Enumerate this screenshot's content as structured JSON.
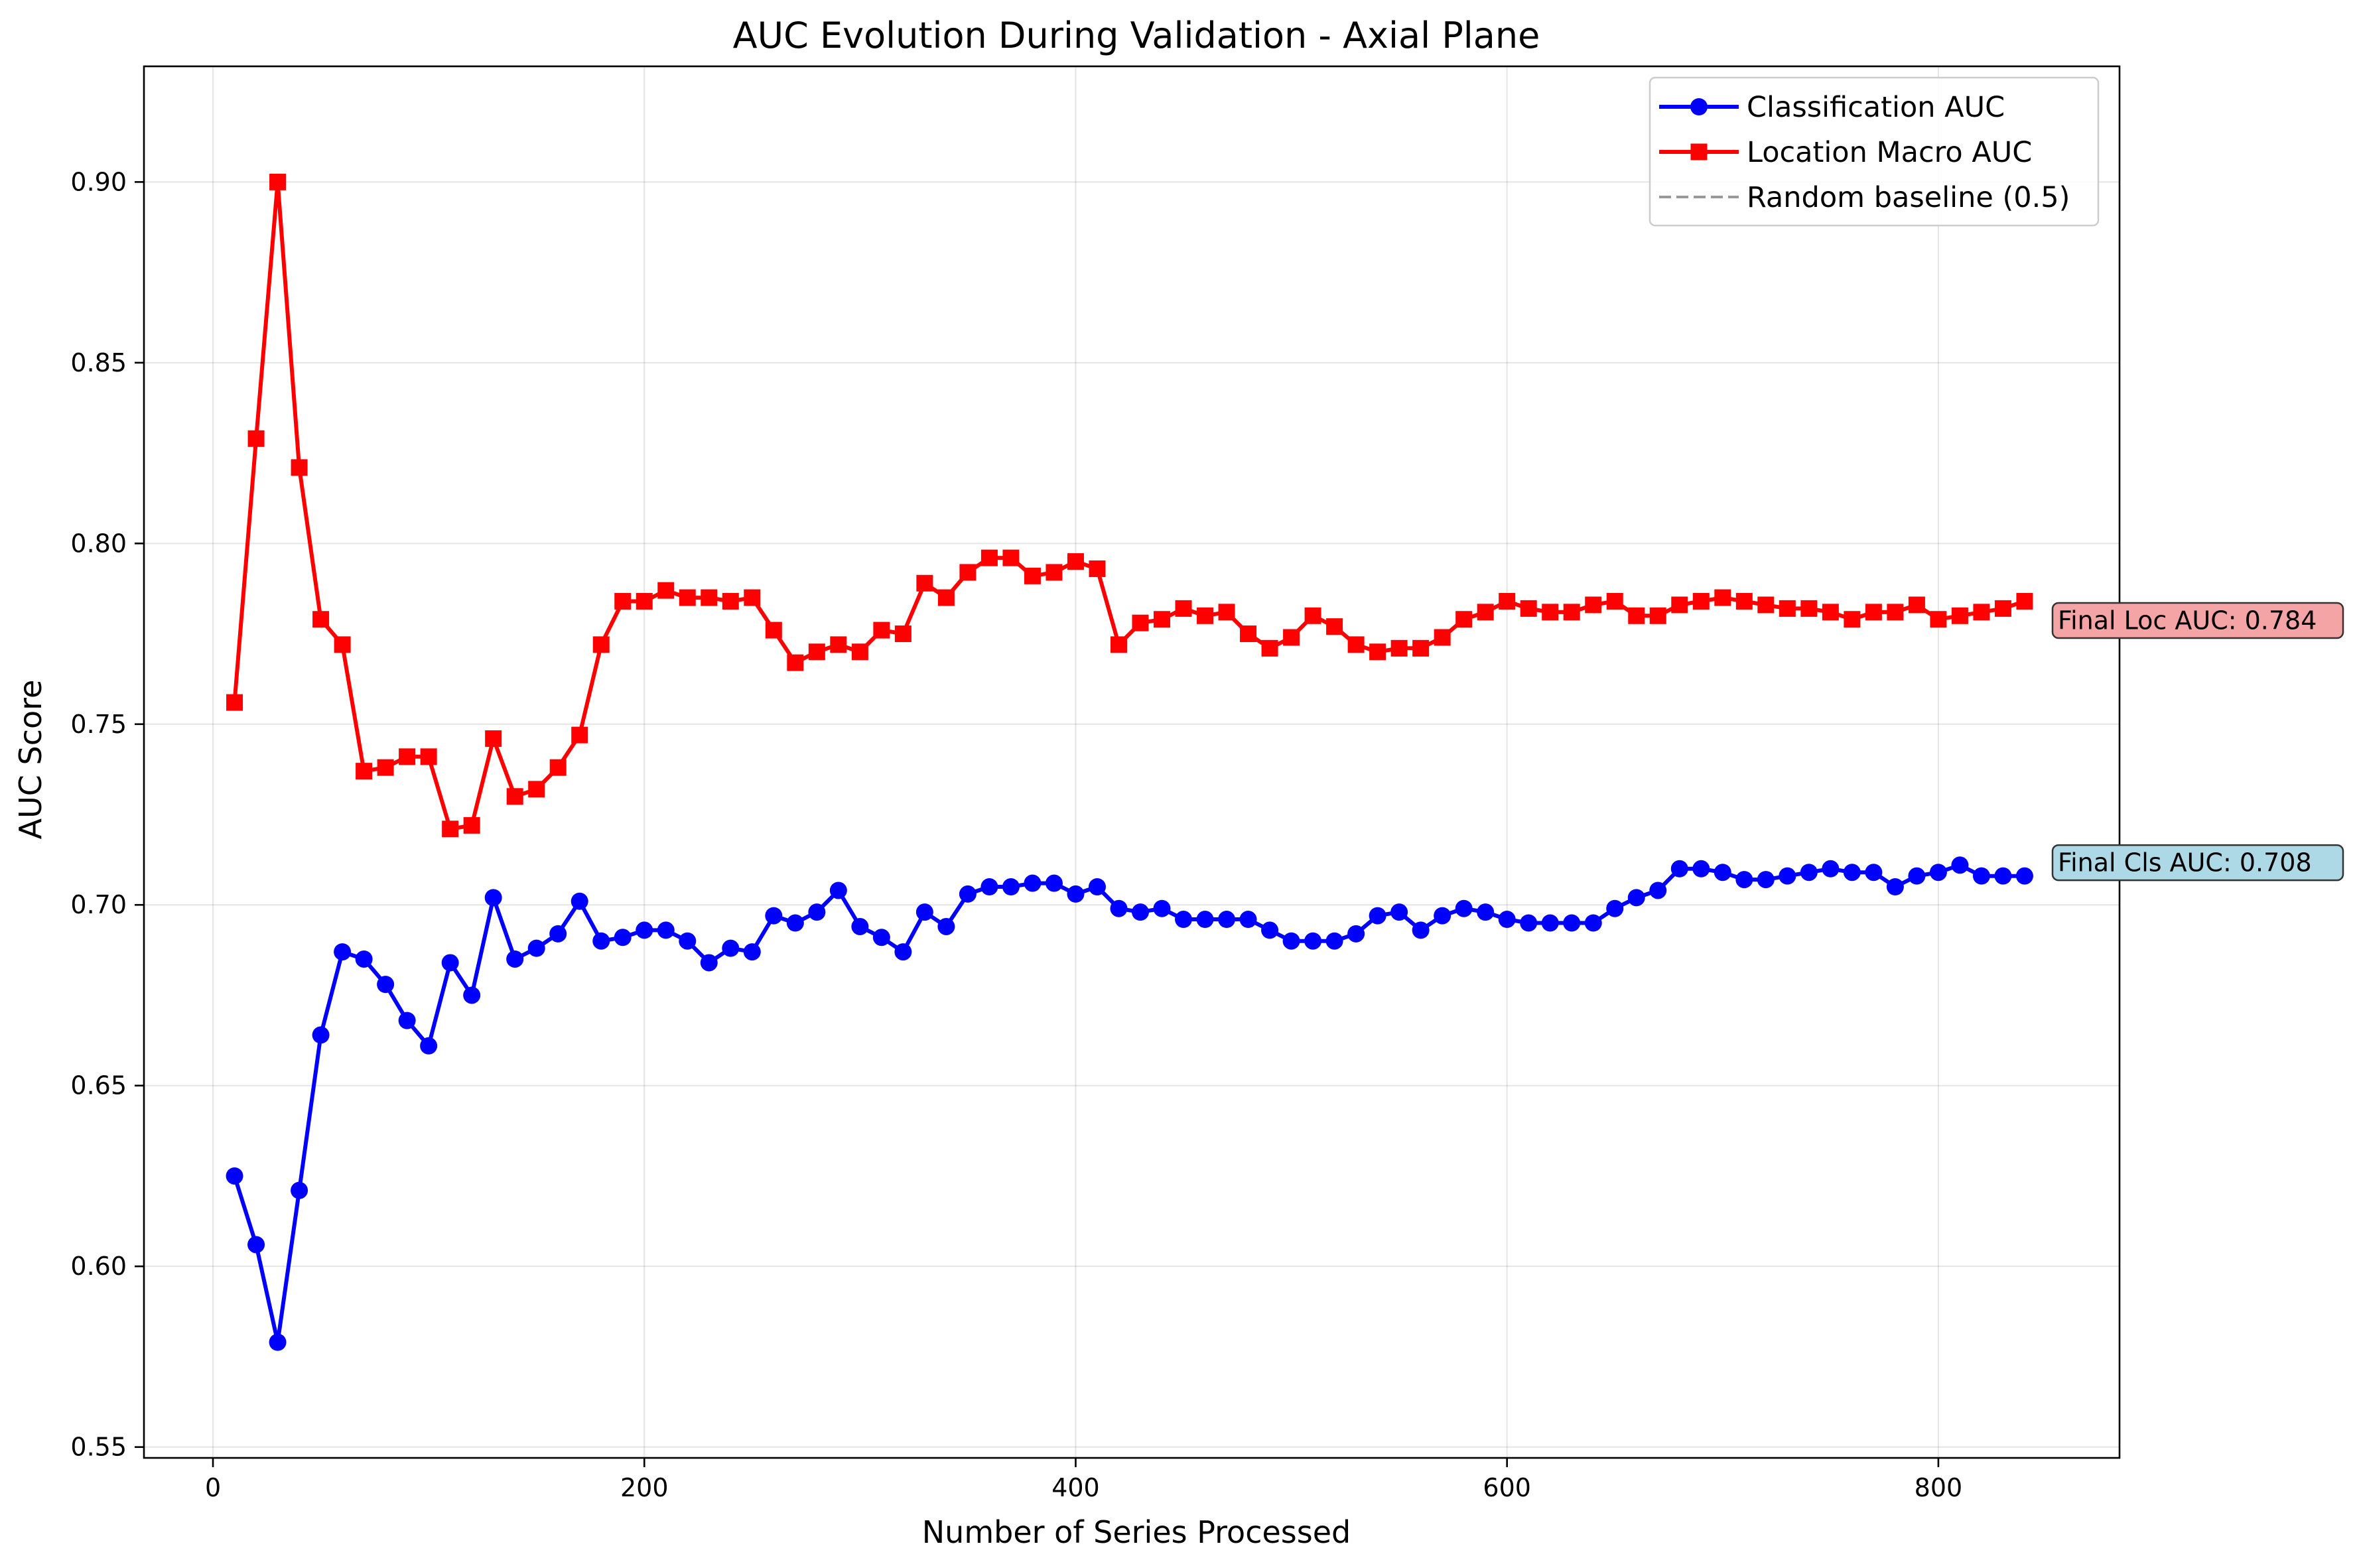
{
  "chart_data": {
    "type": "line",
    "title": "AUC Evolution During Validation - Axial Plane",
    "xlabel": "Number of Series Processed",
    "ylabel": "AUC Score",
    "xlim": [
      -32,
      884
    ],
    "ylim": [
      0.547,
      0.932
    ],
    "xticks": [
      0,
      200,
      400,
      600,
      800
    ],
    "yticks": [
      0.55,
      0.6,
      0.65,
      0.7,
      0.75,
      0.8,
      0.85,
      0.9
    ],
    "grid": true,
    "legend_position": "top-right",
    "x": [
      10,
      20,
      30,
      40,
      50,
      60,
      70,
      80,
      90,
      100,
      110,
      120,
      130,
      140,
      150,
      160,
      170,
      180,
      190,
      200,
      210,
      220,
      230,
      240,
      250,
      260,
      270,
      280,
      290,
      300,
      310,
      320,
      330,
      340,
      350,
      360,
      370,
      380,
      390,
      400,
      410,
      420,
      430,
      440,
      450,
      460,
      470,
      480,
      490,
      500,
      510,
      520,
      530,
      540,
      550,
      560,
      570,
      580,
      590,
      600,
      610,
      620,
      630,
      640,
      650,
      660,
      670,
      680,
      690,
      700,
      710,
      720,
      730,
      740,
      750,
      760,
      770,
      780,
      790,
      800,
      810,
      820,
      830,
      840
    ],
    "series": [
      {
        "name": "Classification AUC",
        "color": "#0000ff",
        "marker": "circle",
        "values": [
          0.625,
          0.606,
          0.579,
          0.621,
          0.664,
          0.687,
          0.685,
          0.678,
          0.668,
          0.661,
          0.684,
          0.675,
          0.702,
          0.685,
          0.688,
          0.692,
          0.701,
          0.69,
          0.691,
          0.693,
          0.693,
          0.69,
          0.684,
          0.688,
          0.687,
          0.697,
          0.695,
          0.698,
          0.704,
          0.694,
          0.691,
          0.687,
          0.698,
          0.694,
          0.703,
          0.705,
          0.705,
          0.706,
          0.706,
          0.703,
          0.705,
          0.699,
          0.698,
          0.699,
          0.696,
          0.696,
          0.696,
          0.696,
          0.693,
          0.69,
          0.69,
          0.69,
          0.692,
          0.697,
          0.698,
          0.693,
          0.697,
          0.699,
          0.698,
          0.696,
          0.695,
          0.695,
          0.695,
          0.695,
          0.699,
          0.702,
          0.704,
          0.71,
          0.71,
          0.709,
          0.707,
          0.707,
          0.708,
          0.709,
          0.71,
          0.709,
          0.709,
          0.705,
          0.708,
          0.709,
          0.711,
          0.708,
          0.708,
          0.708
        ]
      },
      {
        "name": "Location Macro AUC",
        "color": "#ff0000",
        "marker": "square",
        "values": [
          0.756,
          0.829,
          0.9,
          0.821,
          0.779,
          0.772,
          0.737,
          0.738,
          0.741,
          0.741,
          0.721,
          0.722,
          0.746,
          0.73,
          0.732,
          0.738,
          0.747,
          0.772,
          0.784,
          0.784,
          0.787,
          0.785,
          0.785,
          0.784,
          0.785,
          0.776,
          0.767,
          0.77,
          0.772,
          0.77,
          0.776,
          0.775,
          0.789,
          0.785,
          0.792,
          0.796,
          0.796,
          0.791,
          0.792,
          0.795,
          0.793,
          0.772,
          0.778,
          0.779,
          0.782,
          0.78,
          0.781,
          0.775,
          0.771,
          0.774,
          0.78,
          0.777,
          0.772,
          0.77,
          0.771,
          0.771,
          0.774,
          0.779,
          0.781,
          0.784,
          0.782,
          0.781,
          0.781,
          0.783,
          0.784,
          0.78,
          0.78,
          0.783,
          0.784,
          0.785,
          0.784,
          0.783,
          0.782,
          0.782,
          0.781,
          0.779,
          0.781,
          0.781,
          0.783,
          0.779,
          0.78,
          0.781,
          0.782,
          0.784
        ]
      },
      {
        "name": "Random baseline (0.5)",
        "color": "#999999",
        "style": "dashed",
        "y": 0.5
      }
    ],
    "annotations": [
      {
        "text": "Final Loc AUC: 0.784",
        "x": 840,
        "y": 0.784,
        "bg_color": "#f4a4a4"
      },
      {
        "text": "Final Cls AUC: 0.708",
        "x": 840,
        "y": 0.708,
        "bg_color": "#add8e6"
      }
    ]
  }
}
